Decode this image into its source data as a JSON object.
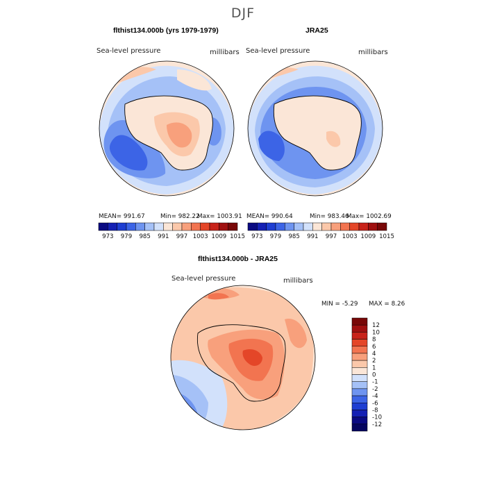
{
  "title": "DJF",
  "panels": {
    "left": {
      "title": "flthist134.000b (yrs 1979-1979)",
      "left_label": "Sea-level pressure",
      "right_label": "millibars",
      "stats": {
        "mean": "MEAN= 991.67",
        "min": "Min= 982.22",
        "max": "Max= 1003.91"
      }
    },
    "right": {
      "title": "JRA25",
      "left_label": "Sea-level pressure",
      "right_label": "millibars",
      "stats": {
        "mean": "MEAN= 990.64",
        "min": "Min= 983.46",
        "max": "Max= 1002.69"
      }
    },
    "diff": {
      "title": "flthist134.000b - JRA25",
      "left_label": "Sea-level pressure",
      "right_label": "millibars",
      "minmax": {
        "min": "MIN =   -5.29",
        "max": "MAX =    8.26"
      }
    }
  },
  "colorbar_horizontal": {
    "labels": [
      "973",
      "979",
      "985",
      "991",
      "997",
      "1003",
      "1009",
      "1015"
    ],
    "colors": [
      "#0a0a82",
      "#1420b4",
      "#1e3ed2",
      "#3c64e6",
      "#6e94f0",
      "#a5c1f7",
      "#d2e1fb",
      "#fbe6d7",
      "#fbc8aa",
      "#f8a07c",
      "#f27450",
      "#e44628",
      "#c8231a",
      "#a01010",
      "#780808"
    ]
  },
  "colorbar_vertical": {
    "labels": [
      "12",
      "10",
      "8",
      "6",
      "4",
      "2",
      "1",
      "0",
      "-1",
      "-2",
      "-4",
      "-6",
      "-8",
      "-10",
      "-12"
    ],
    "colors": [
      "#780808",
      "#a01010",
      "#c8231a",
      "#e44628",
      "#f27450",
      "#f8a07c",
      "#fbc8aa",
      "#fbe6d7",
      "#d2e1fb",
      "#a5c1f7",
      "#6e94f0",
      "#3c64e6",
      "#1e3ed2",
      "#1420b4",
      "#0a0a82",
      "#050560"
    ]
  }
}
